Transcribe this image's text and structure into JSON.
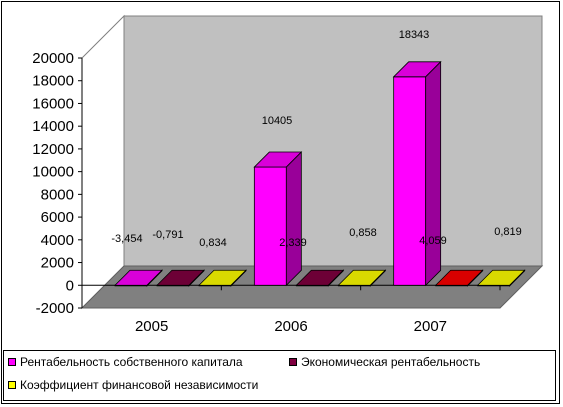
{
  "chart_data": {
    "type": "bar",
    "categories": [
      "2005",
      "2006",
      "2007"
    ],
    "series": [
      {
        "name": "Рентабельность собственного капитала",
        "color": "#ff00ff",
        "values": [
          -3.454,
          10405,
          18343
        ],
        "labels": [
          "-3,454",
          "10405",
          "18343"
        ]
      },
      {
        "name": "Экономическая рентабельность",
        "color": "#800040",
        "values": [
          -0.791,
          2.339,
          4.059
        ],
        "labels": [
          "-0,791",
          "2,339",
          "4,059"
        ]
      },
      {
        "name": "Коэффициент финансовой независимости",
        "color": "#ffff00",
        "values": [
          0.834,
          0.858,
          0.819
        ],
        "labels": [
          "0,834",
          "0,858",
          "0,819"
        ]
      }
    ],
    "point_colors": {
      "1": {
        "2": "#ff0000"
      }
    },
    "yticks": [
      "20000",
      "18000",
      "16000",
      "14000",
      "12000",
      "10000",
      "8000",
      "6000",
      "4000",
      "2000",
      "0",
      "-2000"
    ],
    "ylim": [
      -2000,
      20000
    ],
    "grid": false,
    "legend_position": "bottom"
  }
}
